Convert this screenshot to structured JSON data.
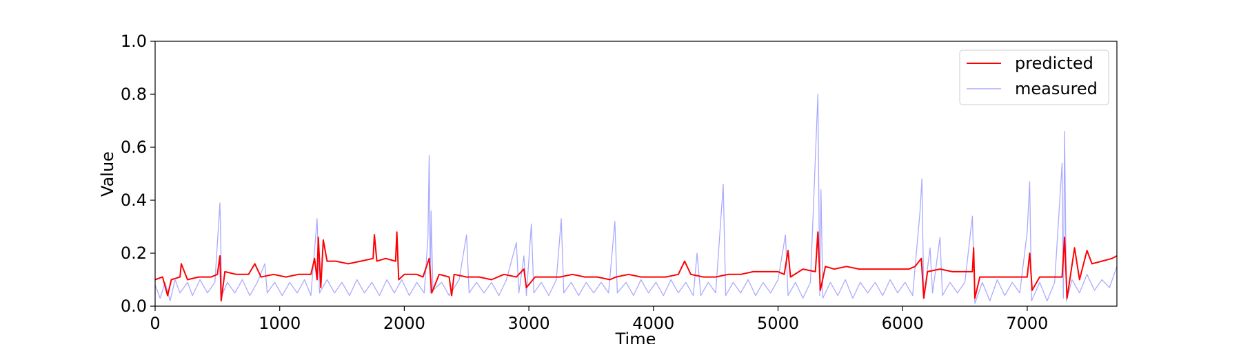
{
  "chart_data": {
    "type": "line",
    "title": "",
    "xlabel": "Time",
    "ylabel": "Value",
    "xlim": [
      0,
      7720
    ],
    "ylim": [
      0,
      1.0
    ],
    "x_ticks": [
      0,
      1000,
      2000,
      3000,
      4000,
      5000,
      6000,
      7000
    ],
    "x_tick_labels": [
      "0",
      "1000",
      "2000",
      "3000",
      "4000",
      "5000",
      "6000",
      "7000"
    ],
    "y_ticks": [
      0.0,
      0.2,
      0.4,
      0.6,
      0.8,
      1.0
    ],
    "y_tick_labels": [
      "0.0",
      "0.2",
      "0.4",
      "0.6",
      "0.8",
      "1.0"
    ],
    "grid": false,
    "legend_position": "top-right",
    "series": [
      {
        "name": "predicted",
        "color": "#ff0000",
        "points": [
          [
            0,
            0.1
          ],
          [
            60,
            0.11
          ],
          [
            100,
            0.04
          ],
          [
            130,
            0.1
          ],
          [
            200,
            0.11
          ],
          [
            210,
            0.16
          ],
          [
            260,
            0.1
          ],
          [
            350,
            0.11
          ],
          [
            450,
            0.11
          ],
          [
            500,
            0.12
          ],
          [
            520,
            0.19
          ],
          [
            530,
            0.02
          ],
          [
            560,
            0.13
          ],
          [
            650,
            0.12
          ],
          [
            750,
            0.12
          ],
          [
            800,
            0.16
          ],
          [
            850,
            0.11
          ],
          [
            950,
            0.12
          ],
          [
            1050,
            0.11
          ],
          [
            1150,
            0.12
          ],
          [
            1250,
            0.12
          ],
          [
            1280,
            0.18
          ],
          [
            1300,
            0.1
          ],
          [
            1310,
            0.26
          ],
          [
            1330,
            0.07
          ],
          [
            1350,
            0.25
          ],
          [
            1380,
            0.17
          ],
          [
            1450,
            0.17
          ],
          [
            1550,
            0.16
          ],
          [
            1650,
            0.17
          ],
          [
            1750,
            0.18
          ],
          [
            1760,
            0.27
          ],
          [
            1780,
            0.17
          ],
          [
            1850,
            0.18
          ],
          [
            1930,
            0.17
          ],
          [
            1940,
            0.28
          ],
          [
            1955,
            0.1
          ],
          [
            2000,
            0.12
          ],
          [
            2100,
            0.12
          ],
          [
            2150,
            0.11
          ],
          [
            2200,
            0.18
          ],
          [
            2220,
            0.05
          ],
          [
            2280,
            0.12
          ],
          [
            2360,
            0.11
          ],
          [
            2380,
            0.04
          ],
          [
            2400,
            0.12
          ],
          [
            2500,
            0.11
          ],
          [
            2600,
            0.11
          ],
          [
            2700,
            0.1
          ],
          [
            2800,
            0.12
          ],
          [
            2900,
            0.11
          ],
          [
            2960,
            0.14
          ],
          [
            2980,
            0.07
          ],
          [
            3050,
            0.11
          ],
          [
            3150,
            0.11
          ],
          [
            3250,
            0.11
          ],
          [
            3350,
            0.12
          ],
          [
            3450,
            0.11
          ],
          [
            3550,
            0.11
          ],
          [
            3650,
            0.1
          ],
          [
            3700,
            0.11
          ],
          [
            3800,
            0.12
          ],
          [
            3900,
            0.11
          ],
          [
            4000,
            0.11
          ],
          [
            4100,
            0.11
          ],
          [
            4200,
            0.12
          ],
          [
            4250,
            0.17
          ],
          [
            4300,
            0.12
          ],
          [
            4400,
            0.11
          ],
          [
            4500,
            0.11
          ],
          [
            4600,
            0.12
          ],
          [
            4700,
            0.12
          ],
          [
            4800,
            0.13
          ],
          [
            4900,
            0.13
          ],
          [
            5000,
            0.13
          ],
          [
            5050,
            0.12
          ],
          [
            5080,
            0.21
          ],
          [
            5100,
            0.11
          ],
          [
            5200,
            0.14
          ],
          [
            5300,
            0.13
          ],
          [
            5320,
            0.28
          ],
          [
            5340,
            0.06
          ],
          [
            5380,
            0.15
          ],
          [
            5450,
            0.14
          ],
          [
            5550,
            0.15
          ],
          [
            5650,
            0.14
          ],
          [
            5750,
            0.14
          ],
          [
            5850,
            0.14
          ],
          [
            5950,
            0.14
          ],
          [
            6050,
            0.14
          ],
          [
            6100,
            0.15
          ],
          [
            6150,
            0.18
          ],
          [
            6170,
            0.03
          ],
          [
            6200,
            0.13
          ],
          [
            6300,
            0.14
          ],
          [
            6400,
            0.13
          ],
          [
            6500,
            0.13
          ],
          [
            6560,
            0.13
          ],
          [
            6570,
            0.22
          ],
          [
            6580,
            0.03
          ],
          [
            6620,
            0.11
          ],
          [
            6700,
            0.11
          ],
          [
            6800,
            0.11
          ],
          [
            6900,
            0.11
          ],
          [
            7000,
            0.11
          ],
          [
            7020,
            0.2
          ],
          [
            7040,
            0.06
          ],
          [
            7100,
            0.11
          ],
          [
            7200,
            0.11
          ],
          [
            7280,
            0.11
          ],
          [
            7300,
            0.26
          ],
          [
            7320,
            0.03
          ],
          [
            7380,
            0.22
          ],
          [
            7420,
            0.1
          ],
          [
            7480,
            0.21
          ],
          [
            7520,
            0.16
          ],
          [
            7600,
            0.17
          ],
          [
            7680,
            0.18
          ],
          [
            7720,
            0.19
          ]
        ]
      },
      {
        "name": "measured",
        "color": "#aaaaff",
        "points": [
          [
            0,
            0.08
          ],
          [
            40,
            0.03
          ],
          [
            80,
            0.09
          ],
          [
            120,
            0.02
          ],
          [
            160,
            0.1
          ],
          [
            200,
            0.05
          ],
          [
            260,
            0.09
          ],
          [
            300,
            0.04
          ],
          [
            360,
            0.1
          ],
          [
            420,
            0.05
          ],
          [
            480,
            0.09
          ],
          [
            520,
            0.39
          ],
          [
            535,
            0.04
          ],
          [
            580,
            0.09
          ],
          [
            640,
            0.05
          ],
          [
            700,
            0.1
          ],
          [
            760,
            0.04
          ],
          [
            820,
            0.09
          ],
          [
            880,
            0.16
          ],
          [
            900,
            0.05
          ],
          [
            960,
            0.09
          ],
          [
            1020,
            0.04
          ],
          [
            1080,
            0.09
          ],
          [
            1140,
            0.05
          ],
          [
            1200,
            0.1
          ],
          [
            1250,
            0.04
          ],
          [
            1300,
            0.33
          ],
          [
            1320,
            0.05
          ],
          [
            1380,
            0.1
          ],
          [
            1440,
            0.05
          ],
          [
            1500,
            0.09
          ],
          [
            1560,
            0.04
          ],
          [
            1620,
            0.1
          ],
          [
            1680,
            0.05
          ],
          [
            1740,
            0.09
          ],
          [
            1800,
            0.04
          ],
          [
            1860,
            0.1
          ],
          [
            1920,
            0.05
          ],
          [
            1980,
            0.1
          ],
          [
            2040,
            0.04
          ],
          [
            2100,
            0.09
          ],
          [
            2160,
            0.05
          ],
          [
            2190,
            0.26
          ],
          [
            2200,
            0.57
          ],
          [
            2210,
            0.05
          ],
          [
            2215,
            0.36
          ],
          [
            2230,
            0.06
          ],
          [
            2300,
            0.09
          ],
          [
            2360,
            0.04
          ],
          [
            2440,
            0.1
          ],
          [
            2500,
            0.27
          ],
          [
            2520,
            0.05
          ],
          [
            2580,
            0.09
          ],
          [
            2640,
            0.05
          ],
          [
            2700,
            0.09
          ],
          [
            2760,
            0.04
          ],
          [
            2820,
            0.1
          ],
          [
            2900,
            0.24
          ],
          [
            2920,
            0.05
          ],
          [
            2960,
            0.19
          ],
          [
            2980,
            0.04
          ],
          [
            3020,
            0.31
          ],
          [
            3040,
            0.05
          ],
          [
            3100,
            0.09
          ],
          [
            3160,
            0.04
          ],
          [
            3220,
            0.1
          ],
          [
            3260,
            0.33
          ],
          [
            3280,
            0.05
          ],
          [
            3340,
            0.09
          ],
          [
            3400,
            0.04
          ],
          [
            3460,
            0.09
          ],
          [
            3520,
            0.05
          ],
          [
            3580,
            0.09
          ],
          [
            3640,
            0.05
          ],
          [
            3690,
            0.32
          ],
          [
            3710,
            0.05
          ],
          [
            3780,
            0.09
          ],
          [
            3840,
            0.04
          ],
          [
            3900,
            0.1
          ],
          [
            3960,
            0.05
          ],
          [
            4020,
            0.09
          ],
          [
            4080,
            0.04
          ],
          [
            4140,
            0.1
          ],
          [
            4200,
            0.05
          ],
          [
            4260,
            0.09
          ],
          [
            4320,
            0.04
          ],
          [
            4350,
            0.2
          ],
          [
            4380,
            0.04
          ],
          [
            4440,
            0.09
          ],
          [
            4500,
            0.05
          ],
          [
            4560,
            0.46
          ],
          [
            4580,
            0.04
          ],
          [
            4640,
            0.09
          ],
          [
            4700,
            0.05
          ],
          [
            4760,
            0.1
          ],
          [
            4820,
            0.04
          ],
          [
            4880,
            0.09
          ],
          [
            4940,
            0.05
          ],
          [
            5000,
            0.1
          ],
          [
            5060,
            0.27
          ],
          [
            5080,
            0.04
          ],
          [
            5140,
            0.09
          ],
          [
            5200,
            0.03
          ],
          [
            5260,
            0.09
          ],
          [
            5320,
            0.8
          ],
          [
            5335,
            0.04
          ],
          [
            5345,
            0.44
          ],
          [
            5360,
            0.03
          ],
          [
            5420,
            0.09
          ],
          [
            5480,
            0.04
          ],
          [
            5540,
            0.1
          ],
          [
            5600,
            0.03
          ],
          [
            5660,
            0.09
          ],
          [
            5720,
            0.05
          ],
          [
            5780,
            0.09
          ],
          [
            5840,
            0.04
          ],
          [
            5900,
            0.1
          ],
          [
            5960,
            0.05
          ],
          [
            6020,
            0.09
          ],
          [
            6080,
            0.04
          ],
          [
            6140,
            0.36
          ],
          [
            6155,
            0.48
          ],
          [
            6170,
            0.03
          ],
          [
            6220,
            0.22
          ],
          [
            6240,
            0.05
          ],
          [
            6300,
            0.26
          ],
          [
            6320,
            0.04
          ],
          [
            6380,
            0.09
          ],
          [
            6440,
            0.05
          ],
          [
            6500,
            0.09
          ],
          [
            6560,
            0.34
          ],
          [
            6580,
            0.01
          ],
          [
            6640,
            0.09
          ],
          [
            6700,
            0.02
          ],
          [
            6760,
            0.1
          ],
          [
            6820,
            0.04
          ],
          [
            6880,
            0.09
          ],
          [
            6940,
            0.05
          ],
          [
            7000,
            0.28
          ],
          [
            7020,
            0.47
          ],
          [
            7035,
            0.02
          ],
          [
            7100,
            0.09
          ],
          [
            7160,
            0.02
          ],
          [
            7220,
            0.09
          ],
          [
            7280,
            0.54
          ],
          [
            7290,
            0.03
          ],
          [
            7300,
            0.66
          ],
          [
            7315,
            0.02
          ],
          [
            7360,
            0.1
          ],
          [
            7420,
            0.05
          ],
          [
            7480,
            0.12
          ],
          [
            7540,
            0.06
          ],
          [
            7600,
            0.1
          ],
          [
            7660,
            0.07
          ],
          [
            7720,
            0.15
          ]
        ]
      }
    ]
  }
}
